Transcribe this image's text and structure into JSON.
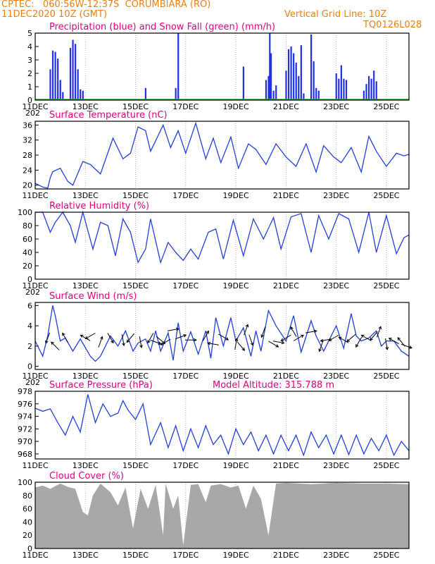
{
  "header": {
    "line1_left": "CPTEC:   060:56W-12:37S  CORUMBIARA (RO)",
    "line2_left": "11DEC2020 10Z (GMT)",
    "line1_right": "Vertical Grid Line: 10Z",
    "line2_right": "TQ0126L028"
  },
  "colors": {
    "title_text": "#e6007e",
    "header_text": "#f07f10",
    "series_line": "#2040e0",
    "precip_bar": "#2030e8",
    "snow_line": "#22b022",
    "cloud_fill": "#a8a8a8",
    "grid_line": "#b0b0b0",
    "wind_arrow": "#000000"
  },
  "x_ticks": [
    "11DEC",
    "13DEC",
    "15DEC",
    "17DEC",
    "19DEC",
    "21DEC",
    "23DEC",
    "25DEC"
  ],
  "year_label_fragment": "202",
  "chart_data": [
    {
      "id": "precip",
      "type": "bar",
      "title": "Precipitation (blue) and Snow Fall (green) (mm/h)",
      "ylim": [
        0,
        5
      ],
      "yticks": [
        0,
        1,
        2,
        3,
        4,
        5
      ],
      "grid": true,
      "series": [
        {
          "name": "Precipitation (blue)",
          "x": [
            0.6,
            0.7,
            0.8,
            0.9,
            1.0,
            1.1,
            1.4,
            1.5,
            1.6,
            1.7,
            1.8,
            1.9,
            4.4,
            5.6,
            5.7,
            8.3,
            9.2,
            9.3,
            9.35,
            9.4,
            9.5,
            9.6,
            10.0,
            10.1,
            10.2,
            10.3,
            10.4,
            10.5,
            10.6,
            10.7,
            11.0,
            11.1,
            11.2,
            11.3,
            12.0,
            12.1,
            12.2,
            12.3,
            12.4,
            13.1,
            13.2,
            13.3,
            13.4,
            13.5,
            13.6
          ],
          "values": [
            2.3,
            3.7,
            3.6,
            3.1,
            1.5,
            0.6,
            3.9,
            4.5,
            4.2,
            2.3,
            0.8,
            0.7,
            0.9,
            0.9,
            5.0,
            2.5,
            1.5,
            1.8,
            5.0,
            3.5,
            0.7,
            1.1,
            2.2,
            3.8,
            4.0,
            3.5,
            2.8,
            1.8,
            4.1,
            0.5,
            4.9,
            2.9,
            0.9,
            0.7,
            2.0,
            1.6,
            2.6,
            1.6,
            1.5,
            0.7,
            1.2,
            1.8,
            1.6,
            2.2,
            1.4
          ]
        },
        {
          "name": "Snow Fall (green)",
          "x": [
            0,
            14.9
          ],
          "values": [
            0,
            0
          ]
        }
      ]
    },
    {
      "id": "temp",
      "type": "line",
      "title": "Surface Temperature (nC)",
      "ylim": [
        19,
        37
      ],
      "yticks": [
        20,
        24,
        28,
        32,
        36
      ],
      "grid": true,
      "series": [
        {
          "name": "",
          "x": [
            0,
            0.3,
            0.5,
            0.6,
            0.7,
            1.0,
            1.3,
            1.5,
            1.9,
            2.2,
            2.6,
            3.1,
            3.5,
            3.8,
            4.1,
            4.4,
            4.6,
            5.1,
            5.4,
            5.7,
            6.0,
            6.4,
            6.8,
            7.1,
            7.4,
            7.8,
            8.1,
            8.5,
            8.8,
            9.2,
            9.6,
            10.0,
            10.4,
            10.8,
            11.2,
            11.5,
            11.9,
            12.2,
            12.6,
            13.0,
            13.3,
            13.6,
            14.0,
            14.4,
            14.7,
            14.9
          ],
          "values": [
            20.5,
            19.5,
            19.2,
            22,
            23.6,
            24.5,
            21,
            20,
            26.3,
            25.5,
            23,
            32.5,
            27,
            28.5,
            35.5,
            34.5,
            29,
            36,
            30,
            34.5,
            28.5,
            36.5,
            27,
            32.5,
            26,
            32.8,
            24.5,
            31,
            29.5,
            25.5,
            31,
            27.5,
            25,
            31,
            23.5,
            30.5,
            27.5,
            26,
            30,
            23.5,
            33,
            29,
            25,
            28.5,
            27.8,
            28.2
          ]
        }
      ]
    },
    {
      "id": "rh",
      "type": "line",
      "title": "Relative Humidity (%)",
      "ylim": [
        0,
        100
      ],
      "yticks": [
        0,
        20,
        40,
        60,
        80,
        100
      ],
      "grid": true,
      "series": [
        {
          "name": "",
          "x": [
            0,
            0.3,
            0.6,
            0.8,
            1.1,
            1.4,
            1.6,
            1.9,
            2.3,
            2.6,
            2.9,
            3.2,
            3.5,
            3.8,
            4.1,
            4.4,
            4.6,
            5.0,
            5.3,
            5.6,
            5.9,
            6.2,
            6.5,
            6.9,
            7.2,
            7.5,
            7.9,
            8.3,
            8.7,
            9.1,
            9.5,
            9.8,
            10.2,
            10.6,
            11.0,
            11.3,
            11.7,
            12.1,
            12.5,
            12.9,
            13.3,
            13.6,
            14.0,
            14.4,
            14.7,
            14.9
          ],
          "values": [
            100,
            100,
            70,
            85,
            100,
            80,
            55,
            100,
            45,
            85,
            80,
            35,
            90,
            70,
            25,
            45,
            90,
            25,
            55,
            40,
            28,
            45,
            30,
            70,
            75,
            30,
            88,
            35,
            90,
            60,
            92,
            45,
            93,
            98,
            40,
            95,
            60,
            98,
            90,
            40,
            100,
            40,
            95,
            38,
            62,
            66
          ]
        }
      ]
    },
    {
      "id": "wind",
      "type": "line",
      "title": "Surface Wind (m/s)",
      "ylim": [
        -0.3,
        6.3
      ],
      "yticks": [
        0,
        2,
        4,
        6
      ],
      "grid": true,
      "series": [
        {
          "name": "",
          "x": [
            0,
            0.3,
            0.5,
            0.7,
            0.8,
            1.0,
            1.2,
            1.5,
            1.8,
            2.2,
            2.4,
            2.6,
            2.8,
            3.0,
            3.3,
            3.6,
            3.9,
            4.1,
            4.4,
            4.6,
            4.8,
            5.0,
            5.3,
            5.5,
            5.7,
            5.9,
            6.2,
            6.5,
            6.8,
            7.0,
            7.2,
            7.5,
            7.8,
            8.0,
            8.3,
            8.6,
            8.8,
            9.0,
            9.3,
            9.6,
            10.0,
            10.3,
            10.6,
            11.0,
            11.2,
            11.5,
            11.8,
            12.0,
            12.3,
            12.6,
            12.8,
            13.0,
            13.3,
            13.6,
            13.8,
            14.0,
            14.3,
            14.6,
            14.9
          ],
          "values": [
            2.5,
            1.0,
            3.0,
            6.0,
            5.0,
            2.5,
            2.8,
            1.5,
            2.7,
            1.0,
            0.5,
            1.0,
            2.0,
            3.0,
            2.0,
            3.5,
            1.5,
            2.3,
            2.7,
            1.5,
            3.5,
            1.5,
            3.3,
            0.6,
            4.3,
            1.5,
            3.4,
            1.2,
            3.5,
            0.8,
            4.8,
            2.0,
            4.8,
            2.5,
            3.8,
            1.0,
            3.5,
            1.5,
            5.5,
            4.0,
            2.5,
            5.0,
            1.4,
            4.5,
            3.0,
            1.5,
            3.0,
            4.0,
            1.8,
            5.2,
            3.0,
            2.5,
            2.8,
            3.5,
            2.0,
            2.5,
            2.5,
            1.5,
            1.0
          ]
        }
      ],
      "wind_arrows": {
        "x": [
          0.5,
          0.8,
          1.2,
          2.0,
          2.2,
          2.6,
          3.0,
          3.5,
          3.8,
          4.2,
          4.6,
          4.8,
          5.0,
          5.2,
          5.5,
          5.8,
          6.2,
          6.8,
          7.1,
          7.5,
          8.0,
          8.2,
          8.4,
          8.6,
          9.1,
          9.5,
          9.7,
          10.0,
          10.3,
          10.5,
          11.0,
          11.4,
          11.6,
          11.9,
          12.3,
          12.6,
          12.9,
          13.2,
          13.5,
          13.7,
          14.0,
          14.3,
          14.6,
          14.8
        ],
        "y": [
          2.8,
          2.0,
          2.8,
          2.8,
          3.0,
          2.4,
          2.8,
          2.6,
          2.8,
          2.4,
          2.8,
          2.4,
          2.6,
          2.4,
          3.6,
          2.9,
          2.6,
          3.0,
          2.2,
          2.9,
          2.2,
          2.0,
          3.6,
          2.6,
          3.4,
          2.2,
          2.4,
          2.8,
          3.4,
          2.8,
          3.4,
          2.0,
          2.6,
          2.8,
          2.6,
          2.8,
          2.4,
          2.8,
          3.0,
          3.4,
          2.2,
          2.5,
          2.4,
          2.0
        ],
        "dir_deg": [
          200,
          315,
          330,
          300,
          240,
          20,
          150,
          170,
          220,
          170,
          210,
          110,
          130,
          240,
          80,
          70,
          90,
          30,
          280,
          120,
          10,
          140,
          20,
          160,
          200,
          120,
          100,
          240,
          330,
          60,
          80,
          200,
          260,
          240,
          300,
          230,
          210,
          300,
          220,
          20,
          170,
          300,
          320,
          110
        ]
      }
    },
    {
      "id": "pressure",
      "type": "line",
      "title": "Surface Pressure (hPa)",
      "annotation": "Model Altitude: 315.788 m",
      "ylim": [
        967.2,
        978
      ],
      "yticks": [
        968,
        970,
        972,
        974,
        976,
        978
      ],
      "grid": true,
      "series": [
        {
          "name": "",
          "x": [
            0,
            0.3,
            0.6,
            0.9,
            1.2,
            1.5,
            1.8,
            2.1,
            2.4,
            2.7,
            3.0,
            3.3,
            3.5,
            3.7,
            4.0,
            4.3,
            4.6,
            5.0,
            5.3,
            5.6,
            5.9,
            6.2,
            6.5,
            6.8,
            7.1,
            7.4,
            7.7,
            8.0,
            8.3,
            8.6,
            8.9,
            9.2,
            9.5,
            9.8,
            10.1,
            10.4,
            10.7,
            11.0,
            11.3,
            11.6,
            11.9,
            12.2,
            12.5,
            12.8,
            13.1,
            13.4,
            13.7,
            14.0,
            14.3,
            14.6,
            14.9
          ],
          "values": [
            975.3,
            974.8,
            975.2,
            973,
            971,
            974,
            971.5,
            977.5,
            973,
            976,
            974,
            974.5,
            976.5,
            975,
            973.5,
            976,
            969.5,
            973,
            969,
            972.5,
            968.5,
            972,
            969,
            972.5,
            969.5,
            971,
            968,
            972,
            969.5,
            971.5,
            968.5,
            971,
            968,
            971,
            968.5,
            971,
            967.8,
            971.5,
            969,
            971,
            968,
            971,
            967.9,
            971,
            968,
            970.5,
            968.5,
            971,
            967.8,
            970,
            968.5
          ]
        }
      ]
    },
    {
      "id": "cloud",
      "type": "area",
      "title": "Cloud Cover (%)",
      "ylim": [
        0,
        100
      ],
      "yticks": [
        0,
        20,
        40,
        60,
        80,
        100
      ],
      "grid": true,
      "series": [
        {
          "name": "",
          "x": [
            0,
            0.3,
            0.6,
            1.0,
            1.3,
            1.6,
            1.9,
            2.1,
            2.3,
            2.6,
            3.0,
            3.3,
            3.6,
            3.9,
            4.2,
            4.5,
            4.8,
            5.1,
            5.2,
            5.5,
            5.7,
            5.9,
            6.2,
            6.5,
            6.8,
            7.0,
            7.4,
            7.8,
            8.1,
            8.4,
            8.7,
            9.0,
            9.3,
            9.6,
            10.0,
            10.5,
            11.0,
            12.0,
            13.0,
            14.0,
            14.9
          ],
          "values": [
            92,
            95,
            90,
            98,
            93,
            90,
            55,
            50,
            80,
            98,
            85,
            65,
            92,
            30,
            90,
            60,
            96,
            20,
            98,
            60,
            80,
            5,
            96,
            97,
            70,
            95,
            97,
            92,
            95,
            60,
            95,
            75,
            20,
            98,
            99,
            98,
            97,
            99,
            98,
            98,
            97
          ]
        }
      ]
    }
  ]
}
